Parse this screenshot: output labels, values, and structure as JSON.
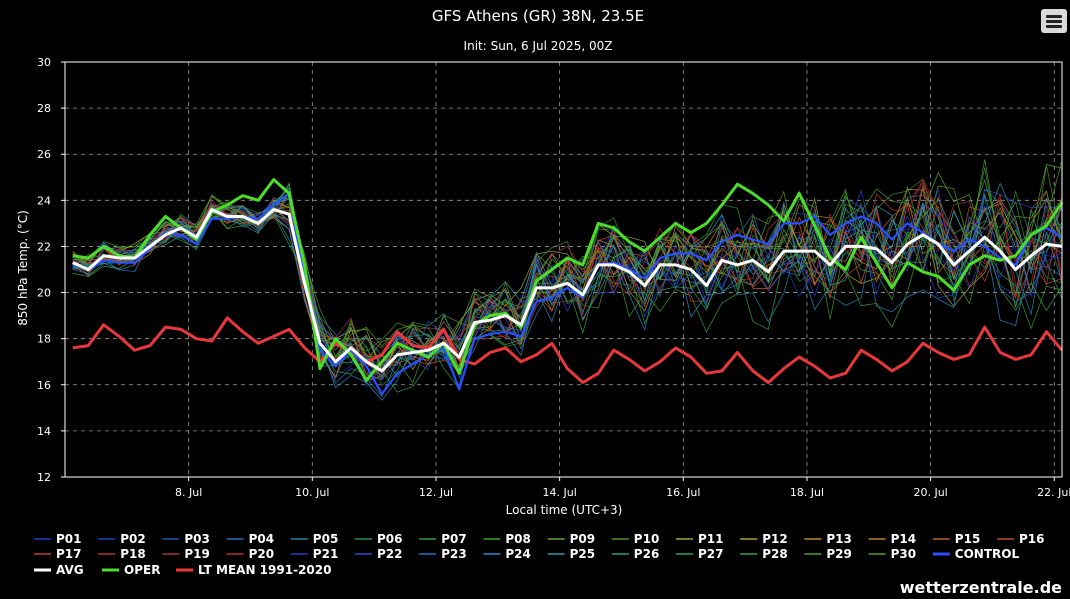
{
  "chart_data": {
    "type": "line",
    "title": "GFS Athens (GR) 38N, 23.5E",
    "subtitle": "Init: Sun, 6 Jul 2025, 00Z",
    "xlabel": "Local time (UTC+3)",
    "ylabel": "850 hPa Temp. (°C)",
    "ylim": [
      12,
      30
    ],
    "yticks": [
      "12",
      "14",
      "16",
      "18",
      "20",
      "22",
      "24",
      "26",
      "28",
      "30"
    ],
    "xticks": [
      "8. Jul",
      "10. Jul",
      "12. Jul",
      "14. Jul",
      "16. Jul",
      "18. Jul",
      "20. Jul",
      "22. Jul"
    ],
    "xlim_hours": [
      -3,
      384
    ],
    "xtick_hours": [
      45,
      93,
      141,
      189,
      237,
      285,
      333,
      381
    ],
    "step_hours": 6,
    "grid": true,
    "legend_position": "bottom",
    "background": "#000000",
    "series": [
      {
        "name": "AVG",
        "color": "#ffffff",
        "values": [
          21.3,
          21.0,
          21.6,
          21.5,
          21.5,
          22.0,
          22.5,
          22.8,
          22.4,
          23.6,
          23.3,
          23.3,
          23.0,
          23.6,
          23.4,
          20.4,
          17.8,
          17.0,
          17.6,
          17.0,
          16.6,
          17.3,
          17.4,
          17.5,
          17.8,
          17.2,
          18.7,
          18.8,
          19.0,
          18.6,
          20.2,
          20.2,
          20.4,
          19.9,
          21.2,
          21.2,
          20.9,
          20.3,
          21.2,
          21.2,
          21.0,
          20.3,
          21.4,
          21.2,
          21.4,
          20.9,
          21.8,
          21.8,
          21.8,
          21.2,
          22.0,
          22.0,
          21.9,
          21.3,
          22.1,
          22.5,
          22.1,
          21.2,
          21.8,
          22.4,
          21.8,
          21.0,
          21.6,
          22.1,
          22.0
        ]
      },
      {
        "name": "OPER",
        "color": "#4cdc2c",
        "values": [
          21.6,
          21.5,
          22.0,
          21.6,
          21.5,
          22.5,
          23.3,
          22.8,
          22.3,
          23.5,
          23.8,
          24.2,
          24.0,
          24.9,
          24.3,
          21.2,
          16.7,
          18.0,
          17.3,
          16.2,
          17.0,
          17.8,
          17.5,
          17.2,
          17.8,
          16.5,
          18.6,
          19.0,
          19.1,
          18.5,
          20.5,
          21.0,
          21.5,
          21.2,
          23.0,
          22.8,
          22.2,
          21.8,
          22.4,
          23.0,
          22.6,
          23.0,
          23.8,
          24.7,
          24.3,
          23.8,
          23.1,
          24.3,
          22.9,
          21.5,
          21.0,
          22.4,
          21.3,
          20.2,
          21.3,
          20.9,
          20.7,
          20.1,
          21.2,
          21.6,
          21.4,
          21.6,
          22.5,
          22.9,
          23.9
        ]
      },
      {
        "name": "CONTROL",
        "color": "#2850ff",
        "values": [
          21.2,
          21.0,
          21.4,
          21.3,
          21.3,
          21.9,
          22.6,
          22.5,
          22.1,
          23.2,
          23.2,
          23.3,
          23.2,
          23.8,
          24.3,
          20.5,
          17.5,
          16.8,
          17.5,
          16.8,
          15.6,
          16.5,
          16.9,
          17.3,
          17.6,
          15.8,
          18.0,
          18.2,
          18.3,
          18.1,
          19.6,
          19.8,
          20.2,
          19.8,
          21.2,
          21.3,
          21.0,
          20.6,
          21.5,
          21.7,
          21.7,
          21.4,
          22.2,
          22.5,
          22.3,
          22.1,
          23.0,
          23.0,
          23.3,
          22.5,
          23.0,
          23.3,
          23.0,
          22.3,
          23.0,
          22.6,
          22.1,
          21.8,
          22.3,
          22.0,
          21.5,
          21.2,
          22.5,
          22.8,
          22.4
        ]
      },
      {
        "name": "LT MEAN 1991-2020",
        "color": "#e8383c",
        "values": [
          17.6,
          17.7,
          18.6,
          18.1,
          17.5,
          17.7,
          18.5,
          18.4,
          18.0,
          17.9,
          18.9,
          18.3,
          17.8,
          18.1,
          18.4,
          17.6,
          17.0,
          17.8,
          17.4,
          17.0,
          17.3,
          18.3,
          17.7,
          17.6,
          18.4,
          17.1,
          16.9,
          17.4,
          17.6,
          17.0,
          17.3,
          17.8,
          16.7,
          16.1,
          16.5,
          17.5,
          17.1,
          16.6,
          17.0,
          17.6,
          17.2,
          16.5,
          16.6,
          17.4,
          16.6,
          16.1,
          16.7,
          17.2,
          16.8,
          16.3,
          16.5,
          17.5,
          17.1,
          16.6,
          17.0,
          17.8,
          17.4,
          17.1,
          17.3,
          18.5,
          17.4,
          17.1,
          17.3,
          18.3,
          17.5
        ]
      }
    ],
    "members": [
      {
        "name": "P01",
        "color": "#1e3ad0"
      },
      {
        "name": "P02",
        "color": "#1a44c0"
      },
      {
        "name": "P03",
        "color": "#1e54b8"
      },
      {
        "name": "P04",
        "color": "#2670b8"
      },
      {
        "name": "P05",
        "color": "#1a8aa8"
      },
      {
        "name": "P06",
        "color": "#2a8c4a"
      },
      {
        "name": "P07",
        "color": "#2a9a3a"
      },
      {
        "name": "P08",
        "color": "#3aa02a"
      },
      {
        "name": "P09",
        "color": "#5aa82a"
      },
      {
        "name": "P10",
        "color": "#4a9028"
      },
      {
        "name": "P11",
        "color": "#9aa830"
      },
      {
        "name": "P12",
        "color": "#b0a030"
      },
      {
        "name": "P13",
        "color": "#b8902a"
      },
      {
        "name": "P14",
        "color": "#c0802a"
      },
      {
        "name": "P15",
        "color": "#c0602a"
      },
      {
        "name": "P16",
        "color": "#c04a2a"
      },
      {
        "name": "P17",
        "color": "#b84030"
      },
      {
        "name": "P18",
        "color": "#b03838"
      },
      {
        "name": "P19",
        "color": "#a83048"
      },
      {
        "name": "P20",
        "color": "#c03028"
      },
      {
        "name": "P21",
        "color": "#2a3ac8"
      },
      {
        "name": "P22",
        "color": "#2a4ad0"
      },
      {
        "name": "P23",
        "color": "#2a6ad0"
      },
      {
        "name": "P24",
        "color": "#2a88c8"
      },
      {
        "name": "P25",
        "color": "#2a9ab0"
      },
      {
        "name": "P26",
        "color": "#2a9a80"
      },
      {
        "name": "P27",
        "color": "#30a060"
      },
      {
        "name": "P28",
        "color": "#3aa040"
      },
      {
        "name": "P29",
        "color": "#4aa030"
      },
      {
        "name": "P30",
        "color": "#5a9a28"
      }
    ]
  },
  "legend": {
    "rows": [
      [
        "P01",
        "P02",
        "P03",
        "P04",
        "P05",
        "P06",
        "P07",
        "P08",
        "P09",
        "P10",
        "P11",
        "P12",
        "P13",
        "P14",
        "P15",
        "P16"
      ],
      [
        "P17",
        "P18",
        "P19",
        "P20",
        "P21",
        "P22",
        "P23",
        "P24",
        "P25",
        "P26",
        "P27",
        "P28",
        "P29",
        "P30",
        "CONTROL"
      ],
      [
        "AVG",
        "OPER",
        "LT MEAN 1991-2020"
      ]
    ]
  },
  "credit": "wetterzentrale.de",
  "menu_icon": "hamburger-menu-icon"
}
